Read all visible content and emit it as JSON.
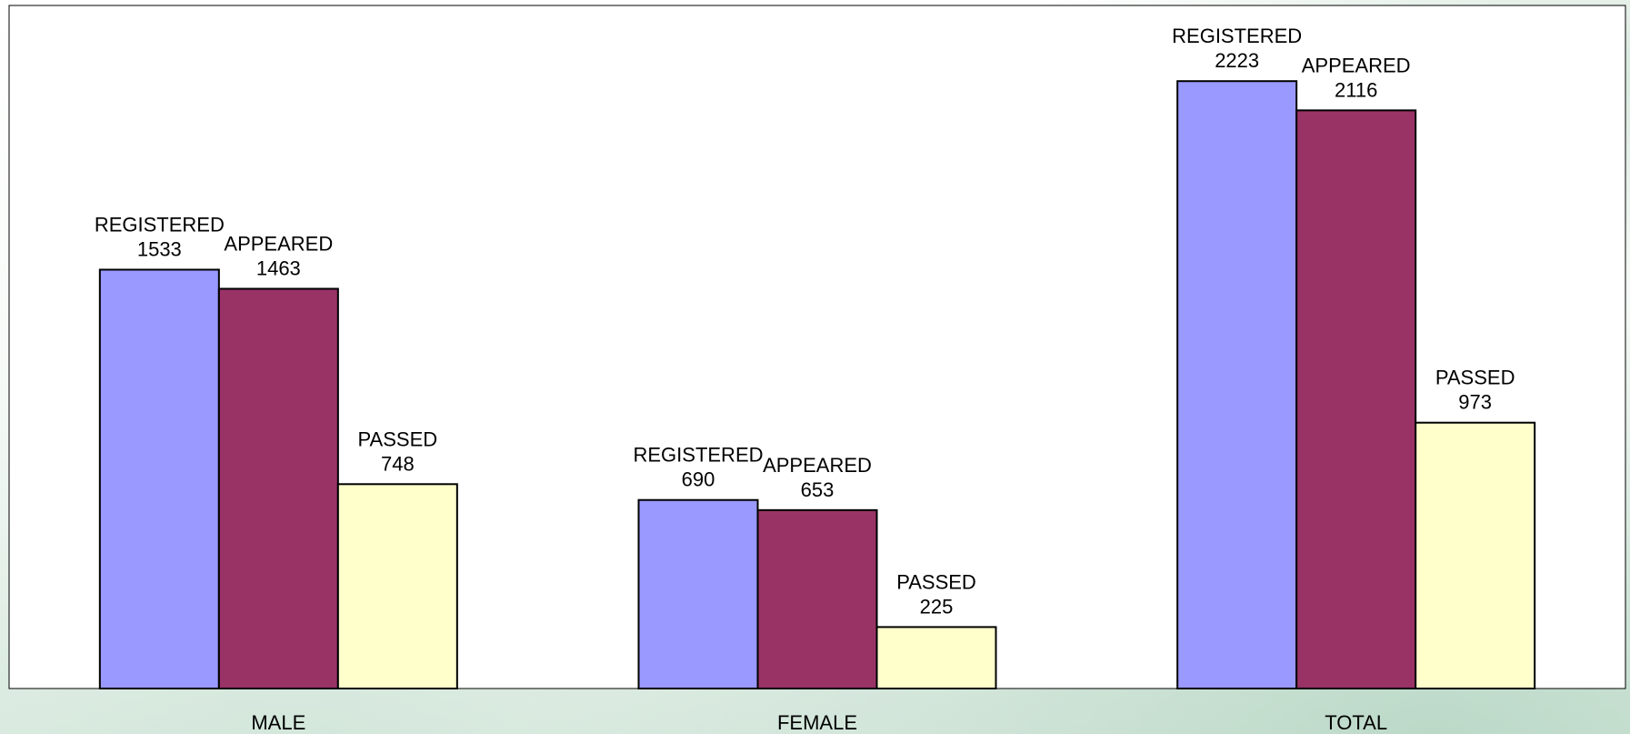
{
  "chart_data": {
    "type": "bar",
    "categories": [
      "MALE",
      "FEMALE",
      "TOTAL"
    ],
    "series": [
      {
        "name": "REGISTERED",
        "values": [
          1533,
          690,
          2223
        ],
        "color": "#9999ff"
      },
      {
        "name": "APPEARED",
        "values": [
          1463,
          653,
          2116
        ],
        "color": "#993366"
      },
      {
        "name": "PASSED",
        "values": [
          748,
          225,
          973
        ],
        "color": "#ffffcc"
      }
    ],
    "data_labels": "series name and value above each bar",
    "legend": "none",
    "grid": false,
    "ylim": [
      0,
      2500
    ],
    "colors": {
      "plot_background": "#ffffff",
      "bar_outline": "#000000",
      "plot_border": "#000000"
    }
  }
}
